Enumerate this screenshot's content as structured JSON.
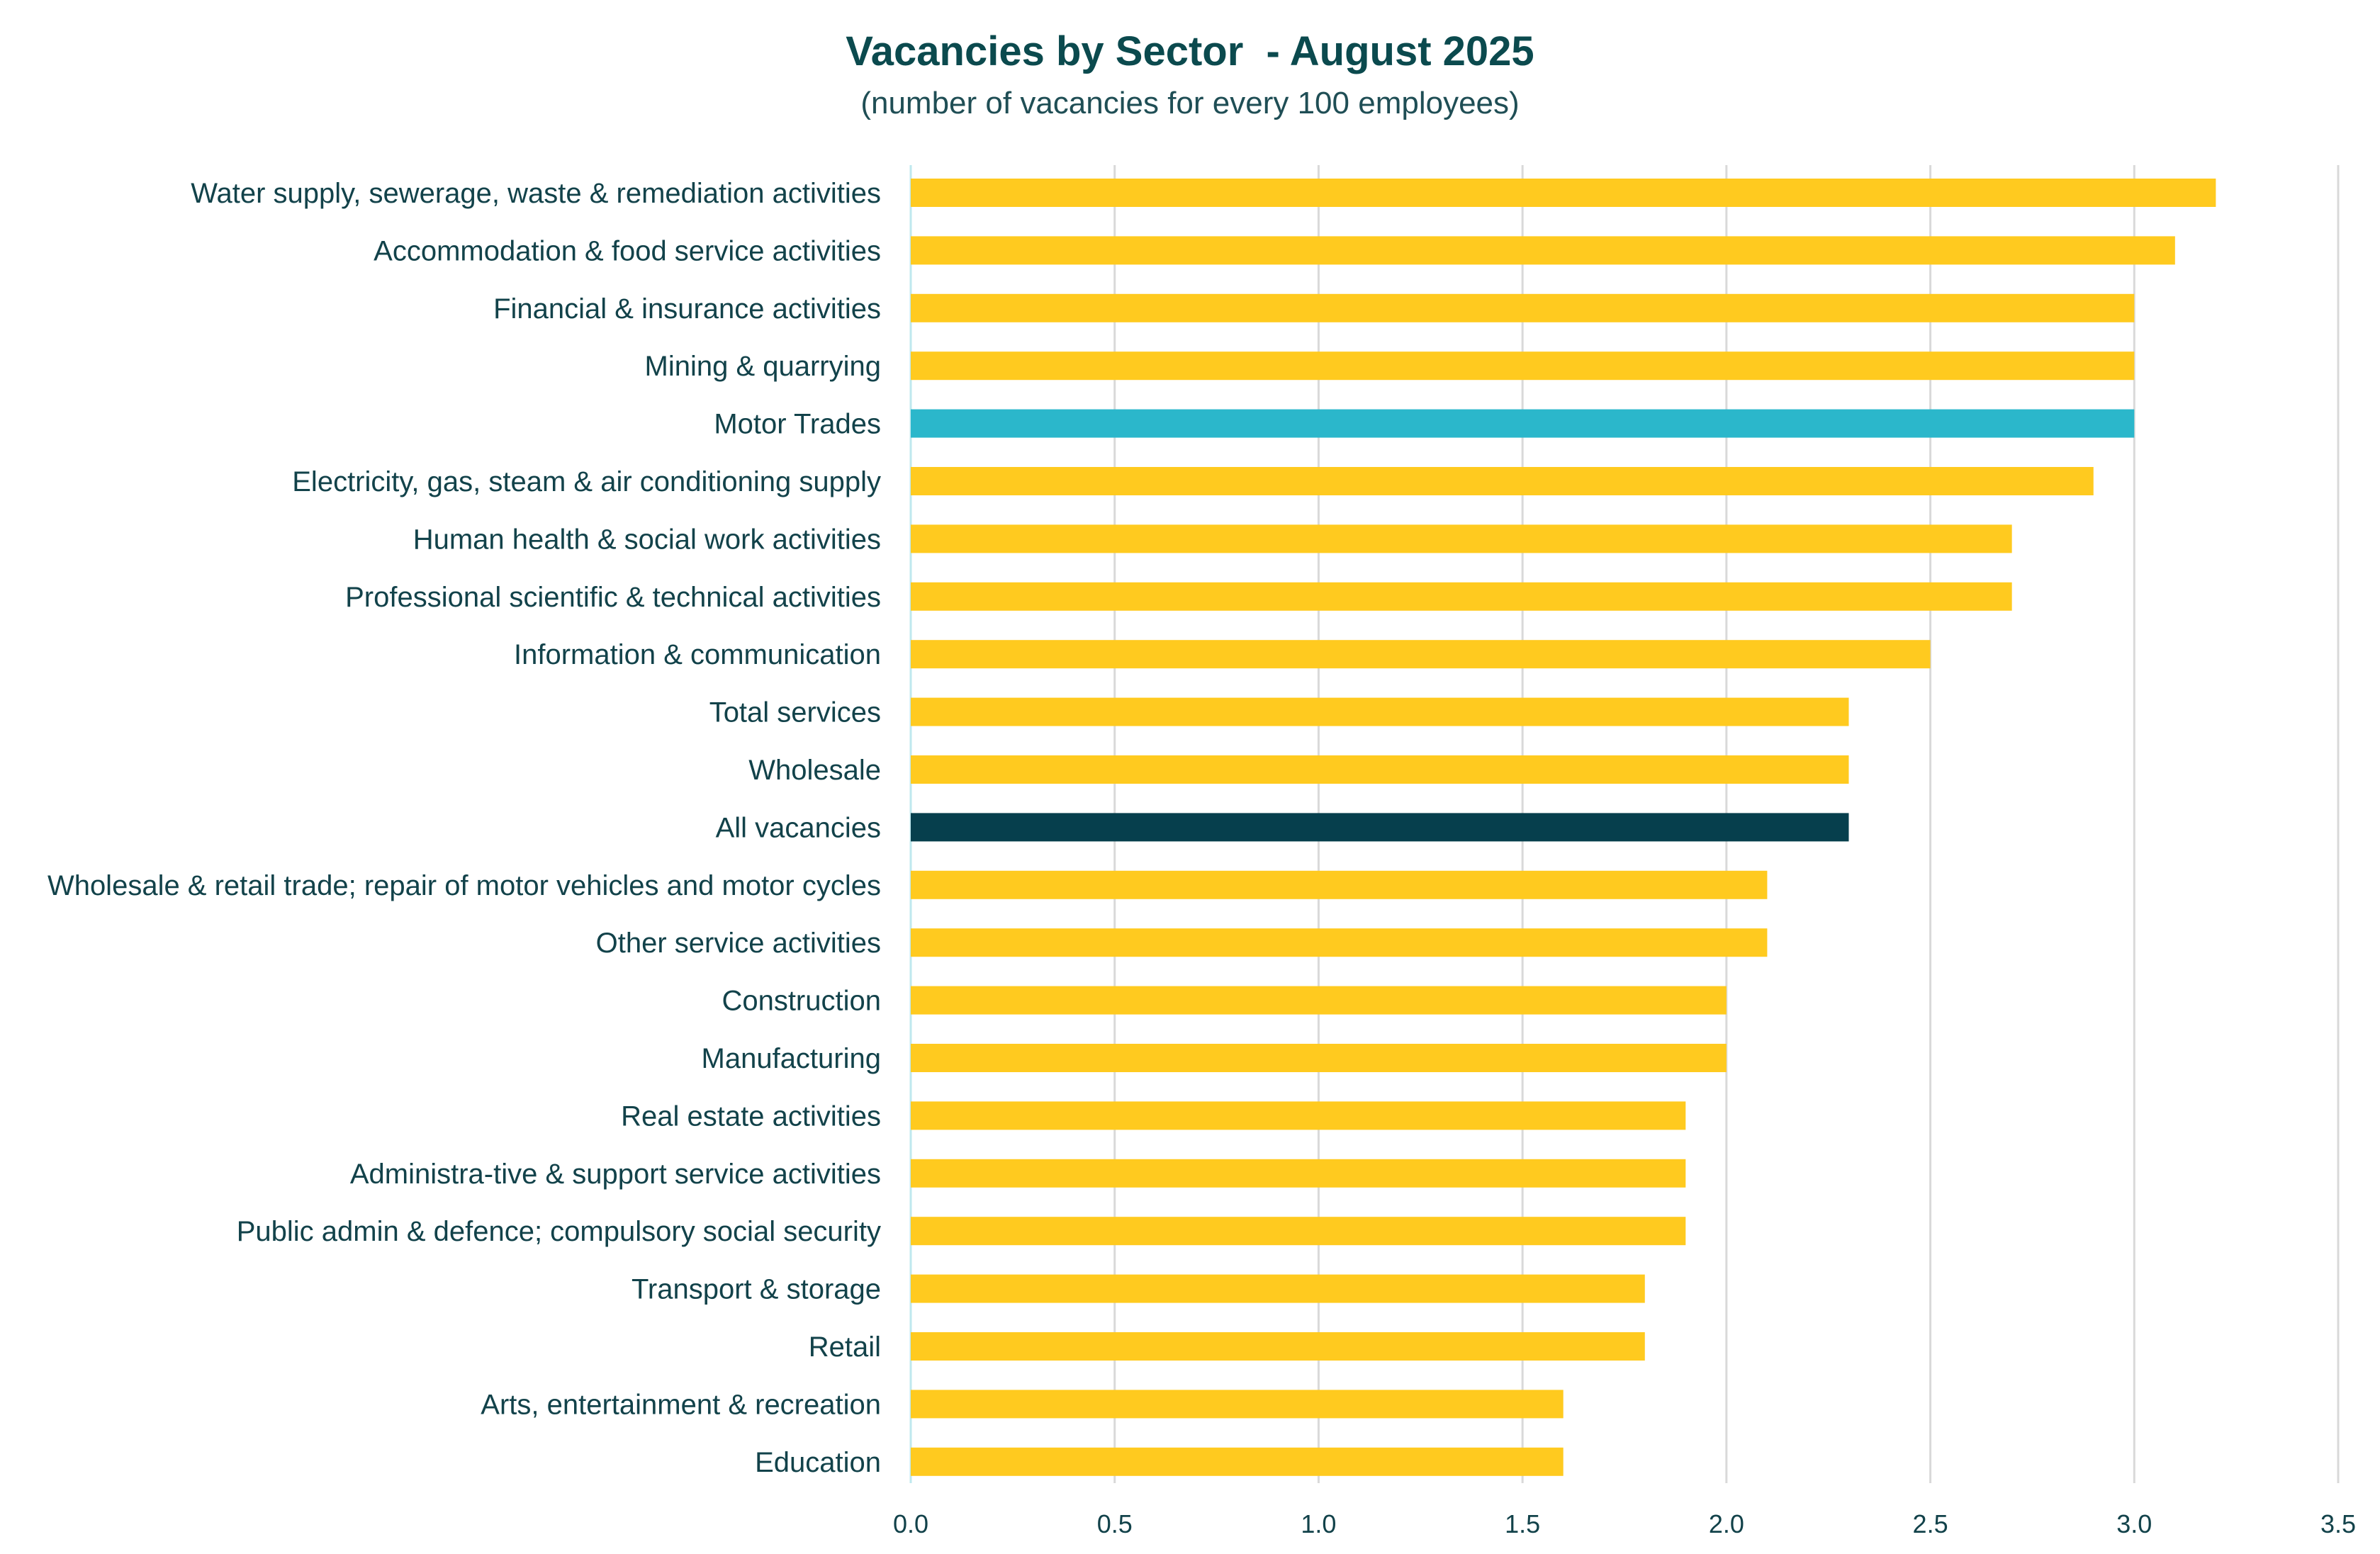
{
  "chart_data": {
    "type": "bar",
    "orientation": "horizontal",
    "title": "Vacancies by Sector  - August 2025",
    "subtitle": "(number of vacancies for every 100 employees)",
    "xlabel": "",
    "ylabel": "",
    "xlim": [
      0,
      3.5
    ],
    "x_ticks": [
      "0.0",
      "0.5",
      "1.0",
      "1.5",
      "2.0",
      "2.5",
      "3.0",
      "3.5"
    ],
    "grid": "vertical",
    "legend": "none",
    "colors": {
      "default": "#FFCA1F",
      "Motor Trades": "#2BB7CB",
      "All vacancies": "#063F4D"
    },
    "categories": [
      "Water supply, sewerage, waste & remediation activities",
      "Accommodation & food service activities",
      "Financial & insurance activities",
      "Mining & quarrying",
      "Motor Trades",
      "Electricity, gas, steam & air conditioning supply",
      "Human health & social work activities",
      "Professional scientific & technical activities",
      "Information & communication",
      "Total services",
      "Wholesale",
      "All vacancies",
      "Wholesale & retail trade; repair of motor vehicles and motor cycles",
      "Other service activities",
      "Construction",
      "Manufacturing",
      "Real estate activities",
      "Administra-tive & support service activities",
      "Public admin & defence; compulsory social security",
      "Transport & storage",
      "Retail",
      "Arts, entertainment & recreation",
      "Education"
    ],
    "values": [
      3.2,
      3.1,
      3.0,
      3.0,
      3.0,
      2.9,
      2.7,
      2.7,
      2.5,
      2.3,
      2.3,
      2.3,
      2.1,
      2.1,
      2.0,
      2.0,
      1.9,
      1.9,
      1.9,
      1.8,
      1.8,
      1.6,
      1.6
    ]
  }
}
